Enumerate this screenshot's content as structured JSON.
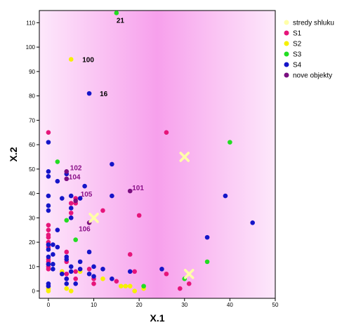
{
  "chart_data": {
    "type": "scatter",
    "xlabel": "X.1",
    "ylabel": "X.2",
    "xlim": [
      -2,
      50
    ],
    "ylim": [
      -3,
      115
    ],
    "xticks": [
      0,
      10,
      20,
      30,
      40,
      50
    ],
    "yticks": [
      0,
      10,
      20,
      30,
      40,
      50,
      60,
      70,
      80,
      90,
      100,
      110
    ],
    "grid": false,
    "legend": "right",
    "background_gradient": [
      "#fde8fb",
      "#f7a0ec",
      "#fde8fb"
    ],
    "series": [
      {
        "name": "S1",
        "color": "#e6157a",
        "points": [
          [
            0,
            65
          ],
          [
            0,
            27
          ],
          [
            0,
            25
          ],
          [
            0,
            23
          ],
          [
            0,
            22
          ],
          [
            0,
            20
          ],
          [
            0,
            18
          ],
          [
            0,
            13
          ],
          [
            0,
            12
          ],
          [
            0,
            11
          ],
          [
            0,
            10
          ],
          [
            0,
            9
          ],
          [
            4,
            16
          ],
          [
            4,
            12
          ],
          [
            4,
            7
          ],
          [
            4,
            5
          ],
          [
            5,
            36
          ],
          [
            5,
            32
          ],
          [
            5,
            30
          ],
          [
            6,
            38
          ],
          [
            6,
            36
          ],
          [
            6,
            8
          ],
          [
            6,
            5
          ],
          [
            9,
            9
          ],
          [
            10,
            5
          ],
          [
            10,
            3
          ],
          [
            12,
            33
          ],
          [
            15,
            4
          ],
          [
            18,
            15
          ],
          [
            19,
            8
          ],
          [
            20,
            31
          ],
          [
            26,
            65
          ],
          [
            26,
            7
          ],
          [
            29,
            1
          ],
          [
            31,
            3
          ]
        ]
      },
      {
        "name": "S2",
        "color": "#f5f000",
        "points": [
          [
            5,
            95
          ],
          [
            0,
            1
          ],
          [
            0,
            0
          ],
          [
            3,
            8
          ],
          [
            4,
            1
          ],
          [
            5,
            0
          ],
          [
            7,
            8
          ],
          [
            12,
            5
          ],
          [
            17,
            2
          ],
          [
            18,
            2
          ],
          [
            19,
            0
          ],
          [
            21,
            1
          ],
          [
            16,
            2
          ]
        ]
      },
      {
        "name": "S3",
        "color": "#22dd22",
        "points": [
          [
            15,
            114
          ],
          [
            40,
            61
          ],
          [
            2,
            53
          ],
          [
            4,
            29
          ],
          [
            6,
            21
          ],
          [
            21,
            2
          ],
          [
            30,
            5
          ],
          [
            35,
            12
          ]
        ]
      },
      {
        "name": "S4",
        "color": "#1515c8",
        "points": [
          [
            9,
            81
          ],
          [
            0,
            61
          ],
          [
            0,
            49
          ],
          [
            0,
            47
          ],
          [
            0,
            39
          ],
          [
            0,
            35
          ],
          [
            0,
            33
          ],
          [
            0,
            19
          ],
          [
            0,
            17
          ],
          [
            0,
            14
          ],
          [
            0,
            11
          ],
          [
            0,
            3
          ],
          [
            0,
            2
          ],
          [
            1,
            19
          ],
          [
            1,
            15
          ],
          [
            1,
            11
          ],
          [
            1,
            9
          ],
          [
            2,
            45
          ],
          [
            2,
            25
          ],
          [
            2,
            18
          ],
          [
            3,
            38
          ],
          [
            3,
            7
          ],
          [
            4,
            48
          ],
          [
            4,
            14
          ],
          [
            4,
            13
          ],
          [
            4,
            5
          ],
          [
            4,
            3
          ],
          [
            5,
            39
          ],
          [
            5,
            34
          ],
          [
            5,
            30
          ],
          [
            5,
            10
          ],
          [
            5,
            8
          ],
          [
            6,
            3
          ],
          [
            7,
            38
          ],
          [
            7,
            12
          ],
          [
            7,
            9
          ],
          [
            8,
            43
          ],
          [
            9,
            16
          ],
          [
            9,
            7
          ],
          [
            10,
            10
          ],
          [
            10,
            6
          ],
          [
            12,
            9
          ],
          [
            14,
            52
          ],
          [
            14,
            39
          ],
          [
            14,
            5
          ],
          [
            18,
            8
          ],
          [
            25,
            9
          ],
          [
            35,
            22
          ],
          [
            39,
            39
          ],
          [
            45,
            28
          ]
        ]
      },
      {
        "name": "nove objekty",
        "color": "#7a0f80",
        "points": [
          [
            4,
            49
          ],
          [
            4,
            46
          ],
          [
            6,
            37
          ],
          [
            9,
            28
          ],
          [
            18,
            41
          ]
        ]
      }
    ],
    "centroids": {
      "name": "stredy shluku",
      "color": "#ffffa8",
      "points": [
        [
          10,
          30
        ],
        [
          30,
          55
        ],
        [
          31,
          7
        ]
      ]
    },
    "annotations": [
      {
        "text": "21",
        "x": 15,
        "y": 114,
        "color": "#000000",
        "dx": 0,
        "dy": 14
      },
      {
        "text": "100",
        "x": 5,
        "y": 95,
        "color": "#000000",
        "dx": 16,
        "dy": 4
      },
      {
        "text": "16",
        "x": 9,
        "y": 81,
        "color": "#000000",
        "dx": 15,
        "dy": 4
      },
      {
        "text": "102",
        "x": 4,
        "y": 49,
        "color": "#8a1088",
        "dx": 5,
        "dy": -2
      },
      {
        "text": "104",
        "x": 4,
        "y": 46,
        "color": "#8a1088",
        "dx": 3,
        "dy": 1
      },
      {
        "text": "105",
        "x": 6,
        "y": 37,
        "color": "#8a1088",
        "dx": 7,
        "dy": -6
      },
      {
        "text": "106",
        "x": 9,
        "y": 28,
        "color": "#8a1088",
        "dx": -15,
        "dy": 12
      },
      {
        "text": "101",
        "x": 18,
        "y": 41,
        "color": "#8a1088",
        "dx": 3,
        "dy": -1
      }
    ]
  }
}
